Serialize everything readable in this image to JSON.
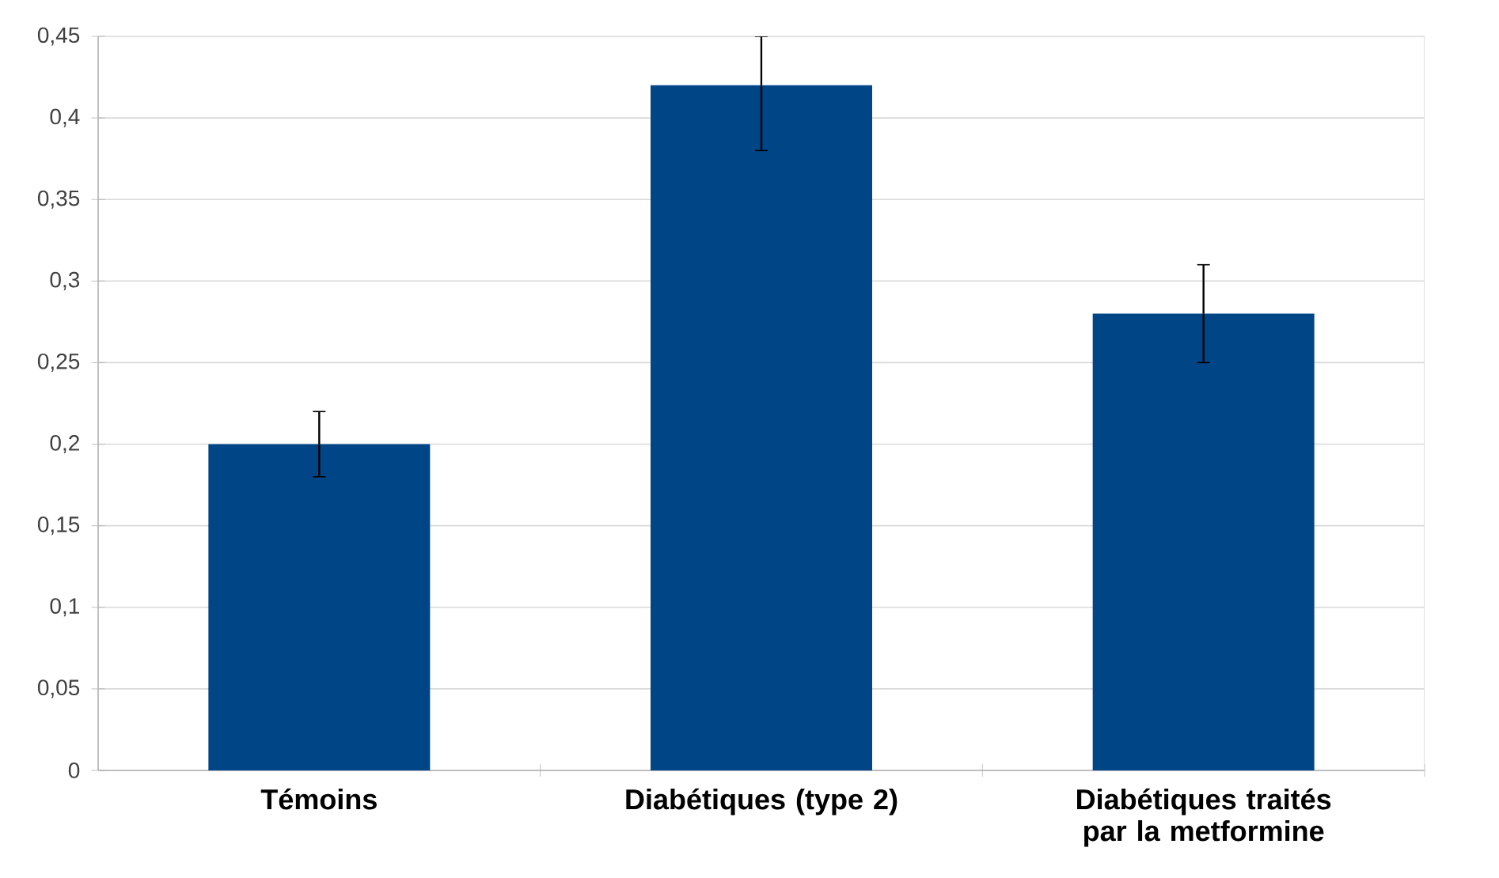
{
  "chart_data": {
    "type": "bar",
    "categories": [
      "Témoins",
      "Diabétiques (type 2)",
      "Diabétiques traités par la metformine"
    ],
    "values": [
      0.2,
      0.42,
      0.28
    ],
    "errors": [
      0.02,
      [
        0.38,
        0.45
      ],
      0.03
    ],
    "color": "#004586",
    "ylim": [
      0,
      0.45
    ],
    "yticks": [
      {
        "value": 0,
        "label": "0"
      },
      {
        "value": 0.05,
        "label": "0,05"
      },
      {
        "value": 0.1,
        "label": "0,1"
      },
      {
        "value": 0.15,
        "label": "0,15"
      },
      {
        "value": 0.2,
        "label": "0,2"
      },
      {
        "value": 0.25,
        "label": "0,25"
      },
      {
        "value": 0.3,
        "label": "0,3"
      },
      {
        "value": 0.35,
        "label": "0,35"
      },
      {
        "value": 0.4,
        "label": "0,4"
      },
      {
        "value": 0.45,
        "label": "0,45"
      }
    ],
    "grid": "y"
  }
}
